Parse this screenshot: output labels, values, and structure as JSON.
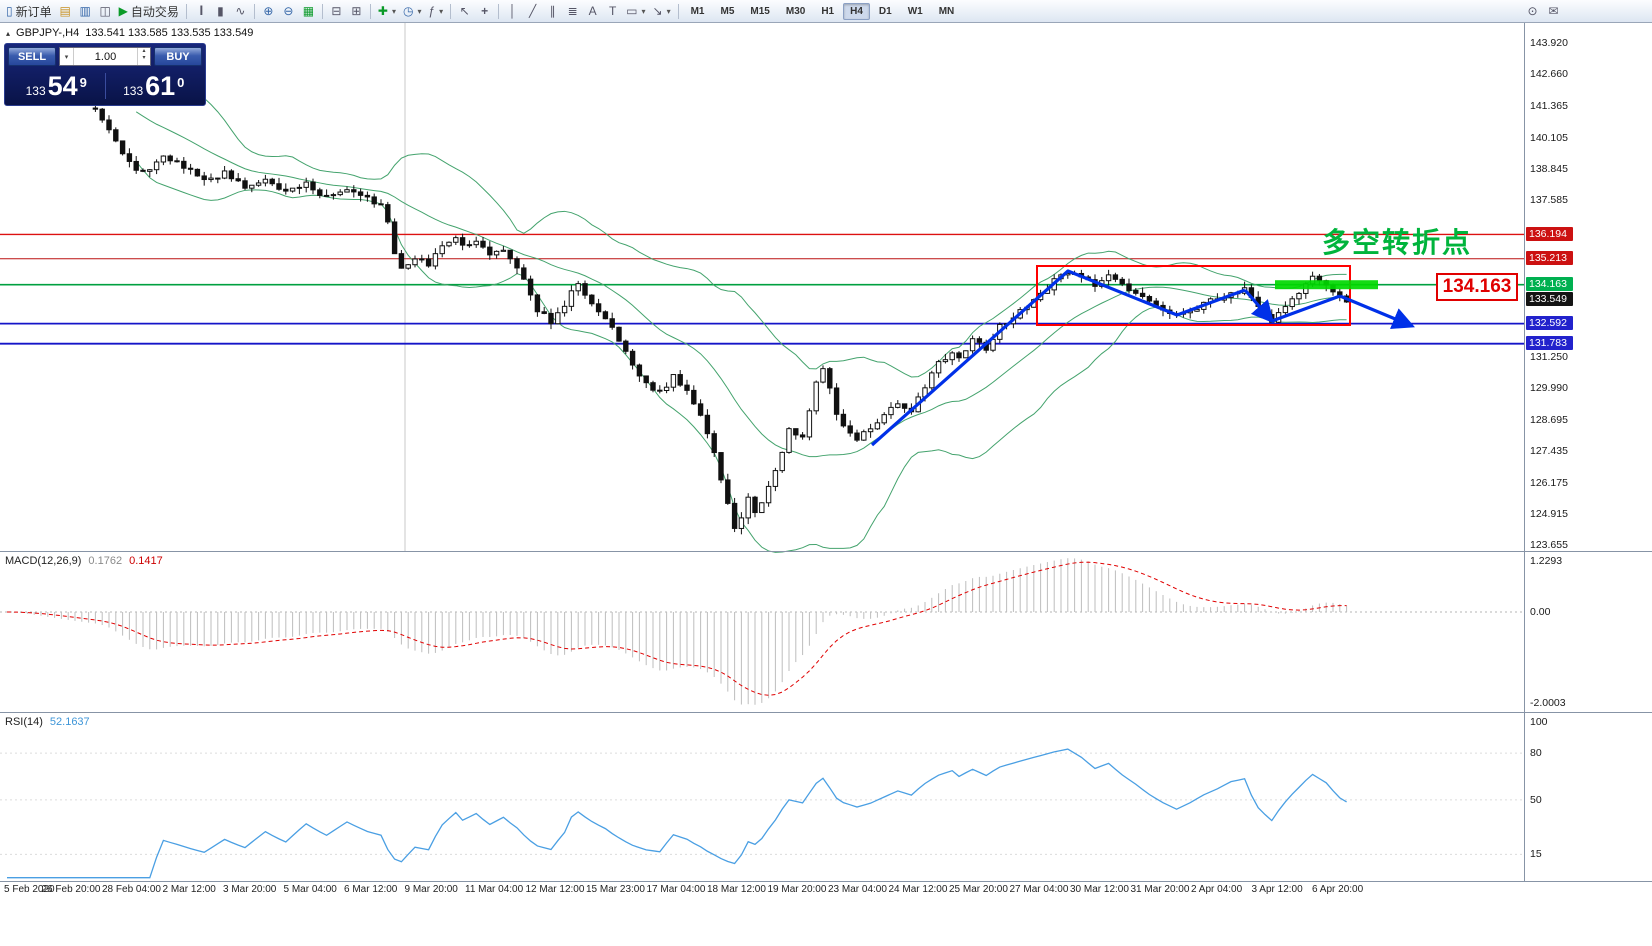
{
  "toolbar": {
    "new_order_label": "新订单",
    "auto_trading_label": "自动交易",
    "timeframes": [
      "M1",
      "M5",
      "M15",
      "M30",
      "H1",
      "H4",
      "D1",
      "W1",
      "MN"
    ],
    "active_timeframe": "H4",
    "icon_glyphs": {
      "new_order": "▯",
      "chart_profile": "▤",
      "market_watch": "▥",
      "navigator": "◫",
      "auto_play": "▶",
      "bars": "|||",
      "candles": "▮",
      "line": "∿",
      "zoom_in": "⊕",
      "zoom_out": "⊖",
      "grid": "▦",
      "tile_h": "⊟",
      "tile_v": "⊞",
      "new_chart": "✚",
      "period": "◷",
      "indicator": "ƒ",
      "cursor": "↖",
      "crosshair": "+",
      "vline": "│",
      "trendline": "╱",
      "channel": "∥",
      "fibo": "≣",
      "text": "A",
      "label": "T",
      "shapes": "▭",
      "arrows": "↘",
      "dropdown": "▾",
      "spin_up": "▴",
      "spin_down": "▾",
      "search": "⊙",
      "mail": "✉",
      "collapse": "▴"
    }
  },
  "symbol_header": {
    "collapse": "▴",
    "symbol": "GBPJPY-,H4",
    "ohlc": "133.541 133.585 133.535 133.549"
  },
  "trade_panel": {
    "sell_label": "SELL",
    "buy_label": "BUY",
    "volume": "1.00",
    "sell_small": "133",
    "sell_big": "54",
    "sell_sup": "9",
    "buy_small": "133",
    "buy_big": "61",
    "buy_sup": "0"
  },
  "price_axis": {
    "labels": [
      "143.920",
      "142.660",
      "141.365",
      "140.105",
      "138.845",
      "137.585",
      "131.250",
      "129.990",
      "128.695",
      "127.435",
      "126.175",
      "124.915",
      "123.655"
    ],
    "badges": [
      {
        "text": "136.194",
        "color": "#cc1111"
      },
      {
        "text": "135.213",
        "color": "#cc1111"
      },
      {
        "text": "134.163",
        "color": "#00b050"
      },
      {
        "text": "133.549",
        "color": "#141414"
      },
      {
        "text": "132.592",
        "color": "#2222cc"
      },
      {
        "text": "131.783",
        "color": "#2222cc"
      }
    ]
  },
  "indicators": {
    "macd": {
      "title": "MACD(12,26,9)",
      "value1": "0.1762",
      "value2": "0.1417",
      "axis": [
        "1.2293",
        "0.00",
        "-2.0003"
      ]
    },
    "rsi": {
      "title": "RSI(14)",
      "value": "52.1637",
      "axis": [
        "100",
        "80",
        "50",
        "15"
      ]
    }
  },
  "annotations": {
    "turning_point": "多空转折点",
    "price_callout": "134.163"
  },
  "time_axis": [
    "5 Feb 2020",
    "26 Feb 20:00",
    "28 Feb 04:00",
    "2 Mar 12:00",
    "3 Mar 20:00",
    "5 Mar 04:00",
    "6 Mar 12:00",
    "9 Mar 20:00",
    "11 Mar 04:00",
    "12 Mar 12:00",
    "15 Mar 23:00",
    "17 Mar 04:00",
    "18 Mar 12:00",
    "19 Mar 20:00",
    "23 Mar 04:00",
    "24 Mar 12:00",
    "25 Mar 20:00",
    "27 Mar 04:00",
    "30 Mar 12:00",
    "31 Mar 20:00",
    "2 Apr 04:00",
    "3 Apr 12:00",
    "6 Apr 20:00"
  ],
  "chart_data": {
    "type": "candlestick",
    "symbol": "GBPJPY",
    "timeframe": "H4",
    "current_price": 133.549,
    "y_axis_range": [
      123.655,
      143.92
    ],
    "macd_range": [
      -2.0003,
      1.2293
    ],
    "rsi_levels": [
      80,
      50,
      15
    ],
    "levels": [
      {
        "price": 136.194,
        "color": "#dd1111",
        "width": 1.4
      },
      {
        "price": 135.213,
        "color": "#bb1111",
        "width": 1
      },
      {
        "price": 134.163,
        "color": "#00a040",
        "width": 1.6
      },
      {
        "price": 132.592,
        "color": "#1515c8",
        "width": 1.8
      },
      {
        "price": 131.783,
        "color": "#1515c8",
        "width": 1.8
      }
    ],
    "price_waypoints": [
      [
        0,
        142.3
      ],
      [
        4,
        141.9
      ],
      [
        9,
        141.5
      ],
      [
        13,
        141.2
      ],
      [
        14,
        140.9
      ],
      [
        15,
        140.5
      ],
      [
        16,
        139.9
      ],
      [
        17,
        139.5
      ],
      [
        19,
        138.85
      ],
      [
        21,
        138.7
      ],
      [
        23,
        139.4
      ],
      [
        25,
        139.1
      ],
      [
        27,
        138.75
      ],
      [
        29,
        138.4
      ],
      [
        32,
        138.65
      ],
      [
        35,
        138.1
      ],
      [
        38,
        138.4
      ],
      [
        41,
        137.85
      ],
      [
        44,
        138.2
      ],
      [
        47,
        137.7
      ],
      [
        50,
        137.95
      ],
      [
        53,
        137.6
      ],
      [
        55,
        137.45
      ],
      [
        56,
        136.6
      ],
      [
        57,
        135.4
      ],
      [
        58,
        134.85
      ],
      [
        60,
        135.25
      ],
      [
        62,
        134.95
      ],
      [
        64,
        135.7
      ],
      [
        66,
        136.15
      ],
      [
        67,
        135.7
      ],
      [
        69,
        135.95
      ],
      [
        71,
        135.3
      ],
      [
        73,
        135.55
      ],
      [
        75,
        134.9
      ],
      [
        76,
        134.35
      ],
      [
        78,
        133.15
      ],
      [
        80,
        132.65
      ],
      [
        82,
        133.25
      ],
      [
        83,
        133.9
      ],
      [
        84,
        134.15
      ],
      [
        86,
        133.45
      ],
      [
        88,
        132.85
      ],
      [
        90,
        131.9
      ],
      [
        92,
        130.9
      ],
      [
        94,
        130.15
      ],
      [
        96,
        129.8
      ],
      [
        98,
        130.45
      ],
      [
        100,
        129.95
      ],
      [
        102,
        128.95
      ],
      [
        104,
        127.4
      ],
      [
        106,
        125.3
      ],
      [
        107,
        124.35
      ],
      [
        108,
        124.8
      ],
      [
        109,
        125.55
      ],
      [
        110,
        125.0
      ],
      [
        111,
        125.35
      ],
      [
        113,
        126.6
      ],
      [
        115,
        128.35
      ],
      [
        117,
        128.05
      ],
      [
        118,
        129.0
      ],
      [
        119,
        130.15
      ],
      [
        120,
        130.85
      ],
      [
        121,
        130.0
      ],
      [
        122,
        128.95
      ],
      [
        123,
        128.45
      ],
      [
        125,
        127.95
      ],
      [
        127,
        128.3
      ],
      [
        129,
        128.85
      ],
      [
        131,
        129.4
      ],
      [
        133,
        129.1
      ],
      [
        135,
        130.1
      ],
      [
        137,
        130.95
      ],
      [
        139,
        131.45
      ],
      [
        140,
        131.15
      ],
      [
        142,
        131.9
      ],
      [
        144,
        131.6
      ],
      [
        146,
        132.45
      ],
      [
        148,
        132.9
      ],
      [
        150,
        133.35
      ],
      [
        152,
        133.8
      ],
      [
        154,
        134.3
      ],
      [
        156,
        134.7
      ],
      [
        158,
        134.45
      ],
      [
        160,
        134.1
      ],
      [
        162,
        134.5
      ],
      [
        164,
        134.15
      ],
      [
        166,
        133.85
      ],
      [
        168,
        133.5
      ],
      [
        170,
        133.2
      ],
      [
        172,
        132.95
      ],
      [
        174,
        133.15
      ],
      [
        176,
        133.4
      ],
      [
        178,
        133.6
      ],
      [
        180,
        133.85
      ],
      [
        182,
        133.95
      ],
      [
        184,
        133.2
      ],
      [
        186,
        132.7
      ],
      [
        188,
        133.25
      ],
      [
        190,
        133.8
      ],
      [
        192,
        134.45
      ],
      [
        194,
        134.2
      ],
      [
        196,
        133.7
      ],
      [
        197,
        133.55
      ]
    ]
  }
}
